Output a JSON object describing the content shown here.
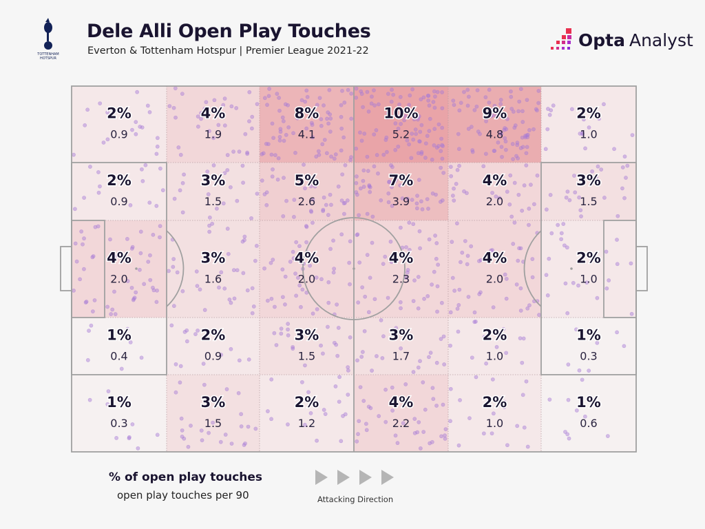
{
  "header": {
    "title": "Dele Alli Open Play Touches",
    "subtitle": "Everton & Tottenham Hotspur | Premier League 2021-22",
    "club_logo_text": "TOTTENHAM HOTSPUR",
    "brand_bold": "Opta",
    "brand_light": "Analyst"
  },
  "legend": {
    "primary": "% of open play touches",
    "secondary": "open play touches per 90",
    "direction": "Attacking Direction"
  },
  "colors": {
    "low": "#f6f1f1",
    "high": "#e9a4a8",
    "dot": "#a77bd6",
    "text": "#1a1430",
    "lines": "#a0a0a0"
  },
  "chart_data": {
    "type": "heatmap",
    "title": "Dele Alli Open Play Touches",
    "description_rows": "pitch zones, top to bottom; columns left to right in attacking direction",
    "cells": [
      [
        {
          "pct": "2%",
          "p90": "0.9"
        },
        {
          "pct": "4%",
          "p90": "1.9"
        },
        {
          "pct": "8%",
          "p90": "4.1"
        },
        {
          "pct": "10%",
          "p90": "5.2"
        },
        {
          "pct": "9%",
          "p90": "4.8"
        },
        {
          "pct": "2%",
          "p90": "1.0"
        }
      ],
      [
        {
          "pct": "2%",
          "p90": "0.9"
        },
        {
          "pct": "3%",
          "p90": "1.5"
        },
        {
          "pct": "5%",
          "p90": "2.6"
        },
        {
          "pct": "7%",
          "p90": "3.9"
        },
        {
          "pct": "4%",
          "p90": "2.0"
        },
        {
          "pct": "3%",
          "p90": "1.5"
        }
      ],
      [
        {
          "pct": "4%",
          "p90": "2.0"
        },
        {
          "pct": "3%",
          "p90": "1.6"
        },
        {
          "pct": "4%",
          "p90": "2.0"
        },
        {
          "pct": "4%",
          "p90": "2.3"
        },
        {
          "pct": "4%",
          "p90": "2.0"
        },
        {
          "pct": "2%",
          "p90": "1.0"
        }
      ],
      [
        {
          "pct": "1%",
          "p90": "0.4"
        },
        {
          "pct": "2%",
          "p90": "0.9"
        },
        {
          "pct": "3%",
          "p90": "1.5"
        },
        {
          "pct": "3%",
          "p90": "1.7"
        },
        {
          "pct": "2%",
          "p90": "1.0"
        },
        {
          "pct": "1%",
          "p90": "0.3"
        }
      ],
      [
        {
          "pct": "1%",
          "p90": "0.3"
        },
        {
          "pct": "3%",
          "p90": "1.5"
        },
        {
          "pct": "2%",
          "p90": "1.2"
        },
        {
          "pct": "4%",
          "p90": "2.2"
        },
        {
          "pct": "2%",
          "p90": "1.0"
        },
        {
          "pct": "1%",
          "p90": "0.6"
        }
      ]
    ]
  }
}
